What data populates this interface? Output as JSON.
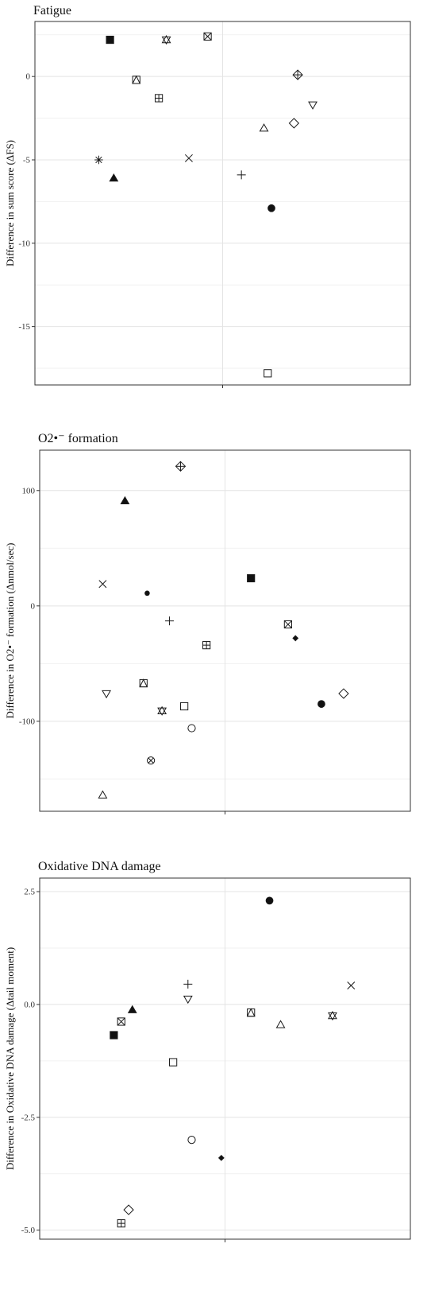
{
  "chart_data": [
    {
      "type": "scatter",
      "title": "Fatigue",
      "ylabel": "Difference in sum score (ΔFS)",
      "xlabel": "",
      "ylim": [
        -18.5,
        3.3
      ],
      "yticks": [
        0,
        -5,
        -10,
        -15
      ],
      "ytick_labels": [
        "0",
        "-5",
        "-10",
        "-15"
      ],
      "grid": true,
      "points": [
        {
          "x": -0.3,
          "y": 2.2,
          "marker": "square-filled"
        },
        {
          "x": -0.15,
          "y": 2.2,
          "marker": "star-of-david"
        },
        {
          "x": -0.04,
          "y": 2.4,
          "marker": "square-x"
        },
        {
          "x": 0.2,
          "y": 0.1,
          "marker": "diamond-plus"
        },
        {
          "x": -0.23,
          "y": -0.2,
          "marker": "square-triangle"
        },
        {
          "x": -0.17,
          "y": -1.3,
          "marker": "square-plus"
        },
        {
          "x": 0.24,
          "y": -1.7,
          "marker": "triangle-down"
        },
        {
          "x": 0.19,
          "y": -2.8,
          "marker": "diamond"
        },
        {
          "x": 0.11,
          "y": -3.1,
          "marker": "triangle"
        },
        {
          "x": -0.33,
          "y": -5.0,
          "marker": "asterisk"
        },
        {
          "x": -0.09,
          "y": -4.9,
          "marker": "x"
        },
        {
          "x": 0.05,
          "y": -5.9,
          "marker": "plus"
        },
        {
          "x": -0.29,
          "y": -6.1,
          "marker": "triangle-filled"
        },
        {
          "x": 0.13,
          "y": -7.9,
          "marker": "circle-filled"
        },
        {
          "x": 0.12,
          "y": -17.8,
          "marker": "square"
        }
      ]
    },
    {
      "type": "scatter",
      "title": "O2•⁻ formation",
      "ylabel": "Difference in O2•⁻ formation (Δnmol/sec)",
      "xlabel": "",
      "ylim": [
        -178,
        135
      ],
      "yticks": [
        100,
        0,
        -100
      ],
      "ytick_labels": [
        "100",
        "0",
        "-100"
      ],
      "grid": true,
      "points": [
        {
          "x": -0.12,
          "y": 121,
          "marker": "diamond-plus"
        },
        {
          "x": -0.27,
          "y": 91,
          "marker": "triangle-filled"
        },
        {
          "x": 0.07,
          "y": 24,
          "marker": "square-filled"
        },
        {
          "x": -0.33,
          "y": 19,
          "marker": "x"
        },
        {
          "x": -0.21,
          "y": 11,
          "marker": "circle-filled-small"
        },
        {
          "x": -0.15,
          "y": -13,
          "marker": "plus"
        },
        {
          "x": 0.17,
          "y": -16,
          "marker": "square-x"
        },
        {
          "x": -0.05,
          "y": -34,
          "marker": "square-plus"
        },
        {
          "x": 0.19,
          "y": -28,
          "marker": "diamond-filled-small"
        },
        {
          "x": -0.22,
          "y": -67,
          "marker": "square-triangle"
        },
        {
          "x": -0.32,
          "y": -76,
          "marker": "triangle-down"
        },
        {
          "x": 0.32,
          "y": -76,
          "marker": "diamond"
        },
        {
          "x": 0.26,
          "y": -85,
          "marker": "circle-filled"
        },
        {
          "x": -0.11,
          "y": -87,
          "marker": "square"
        },
        {
          "x": -0.17,
          "y": -91,
          "marker": "star-of-david"
        },
        {
          "x": -0.09,
          "y": -106,
          "marker": "circle"
        },
        {
          "x": -0.2,
          "y": -134,
          "marker": "circle-x"
        },
        {
          "x": -0.33,
          "y": -164,
          "marker": "triangle"
        }
      ]
    },
    {
      "type": "scatter",
      "title": "Oxidative DNA damage",
      "ylabel": "Difference in Oxidative DNA damage (Δtail moment)",
      "xlabel": "",
      "ylim": [
        -5.2,
        2.8
      ],
      "yticks": [
        2.5,
        0.0,
        -2.5,
        -5.0
      ],
      "ytick_labels": [
        "2.5",
        "0.0",
        "-2.5",
        "-5.0"
      ],
      "grid": true,
      "points": [
        {
          "x": 0.12,
          "y": 2.3,
          "marker": "circle-filled"
        },
        {
          "x": -0.1,
          "y": 0.45,
          "marker": "plus"
        },
        {
          "x": 0.34,
          "y": 0.42,
          "marker": "x"
        },
        {
          "x": -0.1,
          "y": 0.12,
          "marker": "triangle-down"
        },
        {
          "x": -0.25,
          "y": -0.12,
          "marker": "triangle-filled"
        },
        {
          "x": 0.07,
          "y": -0.18,
          "marker": "square-triangle"
        },
        {
          "x": 0.29,
          "y": -0.25,
          "marker": "star-of-david"
        },
        {
          "x": 0.15,
          "y": -0.45,
          "marker": "triangle"
        },
        {
          "x": -0.28,
          "y": -0.38,
          "marker": "square-x"
        },
        {
          "x": -0.3,
          "y": -0.68,
          "marker": "square-filled"
        },
        {
          "x": -0.14,
          "y": -1.28,
          "marker": "square"
        },
        {
          "x": -0.09,
          "y": -3.0,
          "marker": "circle"
        },
        {
          "x": -0.01,
          "y": -3.4,
          "marker": "diamond-filled-small"
        },
        {
          "x": -0.26,
          "y": -4.55,
          "marker": "diamond"
        },
        {
          "x": -0.28,
          "y": -4.85,
          "marker": "square-plus"
        }
      ]
    }
  ]
}
